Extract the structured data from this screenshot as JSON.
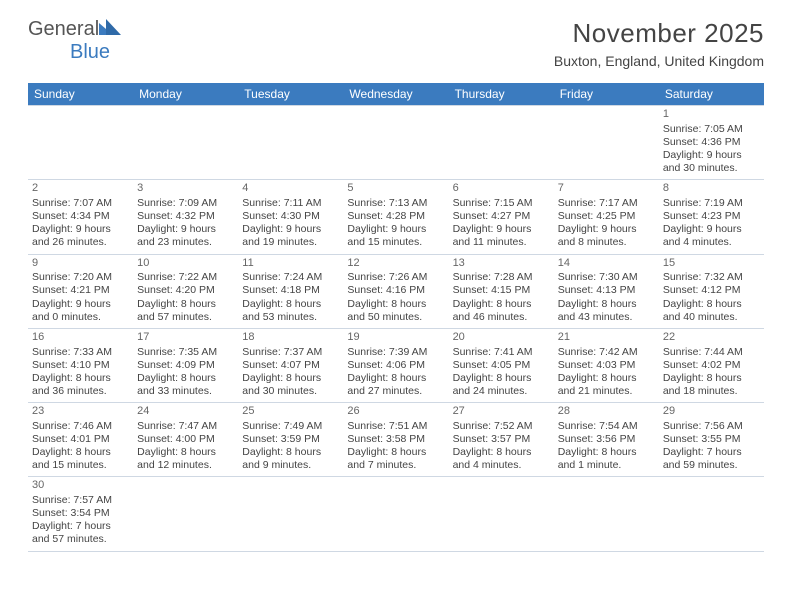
{
  "brand": {
    "name_part1": "General",
    "name_part2": "Blue",
    "mark_color": "#3b7bbf"
  },
  "title": "November 2025",
  "location": "Buxton, England, United Kingdom",
  "colors": {
    "header_bg": "#3b7bbf",
    "header_text": "#ffffff",
    "border": "#cfd8e3",
    "text": "#444444"
  },
  "day_names": [
    "Sunday",
    "Monday",
    "Tuesday",
    "Wednesday",
    "Thursday",
    "Friday",
    "Saturday"
  ],
  "weeks": [
    [
      null,
      null,
      null,
      null,
      null,
      null,
      {
        "n": "1",
        "sr": "Sunrise: 7:05 AM",
        "ss": "Sunset: 4:36 PM",
        "d1": "Daylight: 9 hours",
        "d2": "and 30 minutes."
      }
    ],
    [
      {
        "n": "2",
        "sr": "Sunrise: 7:07 AM",
        "ss": "Sunset: 4:34 PM",
        "d1": "Daylight: 9 hours",
        "d2": "and 26 minutes."
      },
      {
        "n": "3",
        "sr": "Sunrise: 7:09 AM",
        "ss": "Sunset: 4:32 PM",
        "d1": "Daylight: 9 hours",
        "d2": "and 23 minutes."
      },
      {
        "n": "4",
        "sr": "Sunrise: 7:11 AM",
        "ss": "Sunset: 4:30 PM",
        "d1": "Daylight: 9 hours",
        "d2": "and 19 minutes."
      },
      {
        "n": "5",
        "sr": "Sunrise: 7:13 AM",
        "ss": "Sunset: 4:28 PM",
        "d1": "Daylight: 9 hours",
        "d2": "and 15 minutes."
      },
      {
        "n": "6",
        "sr": "Sunrise: 7:15 AM",
        "ss": "Sunset: 4:27 PM",
        "d1": "Daylight: 9 hours",
        "d2": "and 11 minutes."
      },
      {
        "n": "7",
        "sr": "Sunrise: 7:17 AM",
        "ss": "Sunset: 4:25 PM",
        "d1": "Daylight: 9 hours",
        "d2": "and 8 minutes."
      },
      {
        "n": "8",
        "sr": "Sunrise: 7:19 AM",
        "ss": "Sunset: 4:23 PM",
        "d1": "Daylight: 9 hours",
        "d2": "and 4 minutes."
      }
    ],
    [
      {
        "n": "9",
        "sr": "Sunrise: 7:20 AM",
        "ss": "Sunset: 4:21 PM",
        "d1": "Daylight: 9 hours",
        "d2": "and 0 minutes."
      },
      {
        "n": "10",
        "sr": "Sunrise: 7:22 AM",
        "ss": "Sunset: 4:20 PM",
        "d1": "Daylight: 8 hours",
        "d2": "and 57 minutes."
      },
      {
        "n": "11",
        "sr": "Sunrise: 7:24 AM",
        "ss": "Sunset: 4:18 PM",
        "d1": "Daylight: 8 hours",
        "d2": "and 53 minutes."
      },
      {
        "n": "12",
        "sr": "Sunrise: 7:26 AM",
        "ss": "Sunset: 4:16 PM",
        "d1": "Daylight: 8 hours",
        "d2": "and 50 minutes."
      },
      {
        "n": "13",
        "sr": "Sunrise: 7:28 AM",
        "ss": "Sunset: 4:15 PM",
        "d1": "Daylight: 8 hours",
        "d2": "and 46 minutes."
      },
      {
        "n": "14",
        "sr": "Sunrise: 7:30 AM",
        "ss": "Sunset: 4:13 PM",
        "d1": "Daylight: 8 hours",
        "d2": "and 43 minutes."
      },
      {
        "n": "15",
        "sr": "Sunrise: 7:32 AM",
        "ss": "Sunset: 4:12 PM",
        "d1": "Daylight: 8 hours",
        "d2": "and 40 minutes."
      }
    ],
    [
      {
        "n": "16",
        "sr": "Sunrise: 7:33 AM",
        "ss": "Sunset: 4:10 PM",
        "d1": "Daylight: 8 hours",
        "d2": "and 36 minutes."
      },
      {
        "n": "17",
        "sr": "Sunrise: 7:35 AM",
        "ss": "Sunset: 4:09 PM",
        "d1": "Daylight: 8 hours",
        "d2": "and 33 minutes."
      },
      {
        "n": "18",
        "sr": "Sunrise: 7:37 AM",
        "ss": "Sunset: 4:07 PM",
        "d1": "Daylight: 8 hours",
        "d2": "and 30 minutes."
      },
      {
        "n": "19",
        "sr": "Sunrise: 7:39 AM",
        "ss": "Sunset: 4:06 PM",
        "d1": "Daylight: 8 hours",
        "d2": "and 27 minutes."
      },
      {
        "n": "20",
        "sr": "Sunrise: 7:41 AM",
        "ss": "Sunset: 4:05 PM",
        "d1": "Daylight: 8 hours",
        "d2": "and 24 minutes."
      },
      {
        "n": "21",
        "sr": "Sunrise: 7:42 AM",
        "ss": "Sunset: 4:03 PM",
        "d1": "Daylight: 8 hours",
        "d2": "and 21 minutes."
      },
      {
        "n": "22",
        "sr": "Sunrise: 7:44 AM",
        "ss": "Sunset: 4:02 PM",
        "d1": "Daylight: 8 hours",
        "d2": "and 18 minutes."
      }
    ],
    [
      {
        "n": "23",
        "sr": "Sunrise: 7:46 AM",
        "ss": "Sunset: 4:01 PM",
        "d1": "Daylight: 8 hours",
        "d2": "and 15 minutes."
      },
      {
        "n": "24",
        "sr": "Sunrise: 7:47 AM",
        "ss": "Sunset: 4:00 PM",
        "d1": "Daylight: 8 hours",
        "d2": "and 12 minutes."
      },
      {
        "n": "25",
        "sr": "Sunrise: 7:49 AM",
        "ss": "Sunset: 3:59 PM",
        "d1": "Daylight: 8 hours",
        "d2": "and 9 minutes."
      },
      {
        "n": "26",
        "sr": "Sunrise: 7:51 AM",
        "ss": "Sunset: 3:58 PM",
        "d1": "Daylight: 8 hours",
        "d2": "and 7 minutes."
      },
      {
        "n": "27",
        "sr": "Sunrise: 7:52 AM",
        "ss": "Sunset: 3:57 PM",
        "d1": "Daylight: 8 hours",
        "d2": "and 4 minutes."
      },
      {
        "n": "28",
        "sr": "Sunrise: 7:54 AM",
        "ss": "Sunset: 3:56 PM",
        "d1": "Daylight: 8 hours",
        "d2": "and 1 minute."
      },
      {
        "n": "29",
        "sr": "Sunrise: 7:56 AM",
        "ss": "Sunset: 3:55 PM",
        "d1": "Daylight: 7 hours",
        "d2": "and 59 minutes."
      }
    ],
    [
      {
        "n": "30",
        "sr": "Sunrise: 7:57 AM",
        "ss": "Sunset: 3:54 PM",
        "d1": "Daylight: 7 hours",
        "d2": "and 57 minutes."
      },
      null,
      null,
      null,
      null,
      null,
      null
    ]
  ]
}
